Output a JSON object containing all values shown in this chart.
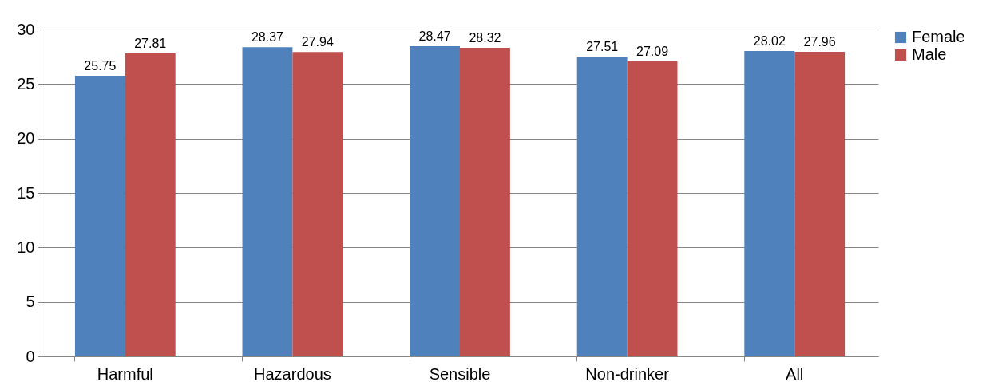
{
  "chart_data": {
    "type": "bar",
    "categories": [
      "Harmful",
      "Hazardous",
      "Sensible",
      "Non-drinker",
      "All"
    ],
    "series": [
      {
        "name": "Female",
        "color": "#4f81bd",
        "values": [
          25.75,
          28.37,
          28.47,
          27.51,
          28.02
        ]
      },
      {
        "name": "Male",
        "color": "#c0504d",
        "values": [
          27.81,
          27.94,
          28.32,
          27.09,
          27.96
        ]
      }
    ],
    "ylim": [
      0,
      30
    ],
    "yticks": [
      0,
      5,
      10,
      15,
      20,
      25,
      30
    ],
    "grid": "y",
    "legend": "right",
    "data_labels": true
  }
}
